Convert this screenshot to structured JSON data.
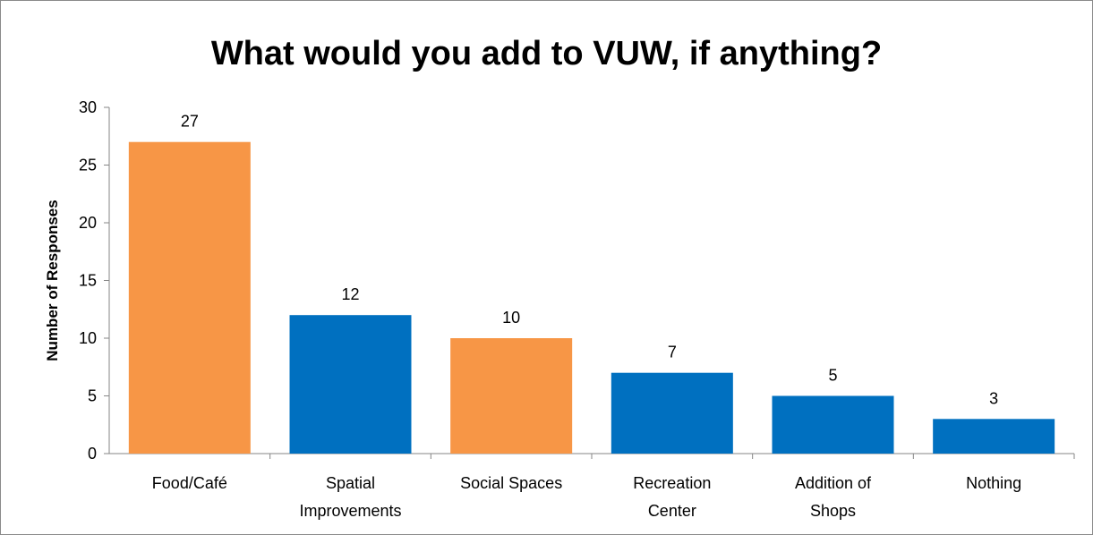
{
  "chart_data": {
    "type": "bar",
    "title": "What would you add to VUW, if anything?",
    "xlabel": "",
    "ylabel": "Number of Responses",
    "ylim": [
      0,
      30
    ],
    "yticks": [
      0,
      5,
      10,
      15,
      20,
      25,
      30
    ],
    "categories": [
      "Food/Café",
      "Spatial Improvements",
      "Social Spaces",
      "Recreation Center",
      "Addition of Shops",
      "Nothing"
    ],
    "category_lines": [
      [
        "Food/Café"
      ],
      [
        "Spatial",
        "Improvements"
      ],
      [
        "Social Spaces"
      ],
      [
        "Recreation",
        "Center"
      ],
      [
        "Addition of",
        "Shops"
      ],
      [
        "Nothing"
      ]
    ],
    "values": [
      27,
      12,
      10,
      7,
      5,
      3
    ],
    "bar_colors": [
      "#F79646",
      "#0070C0",
      "#F79646",
      "#0070C0",
      "#0070C0",
      "#0070C0"
    ],
    "grid": false,
    "legend": "none",
    "data_labels": true
  }
}
